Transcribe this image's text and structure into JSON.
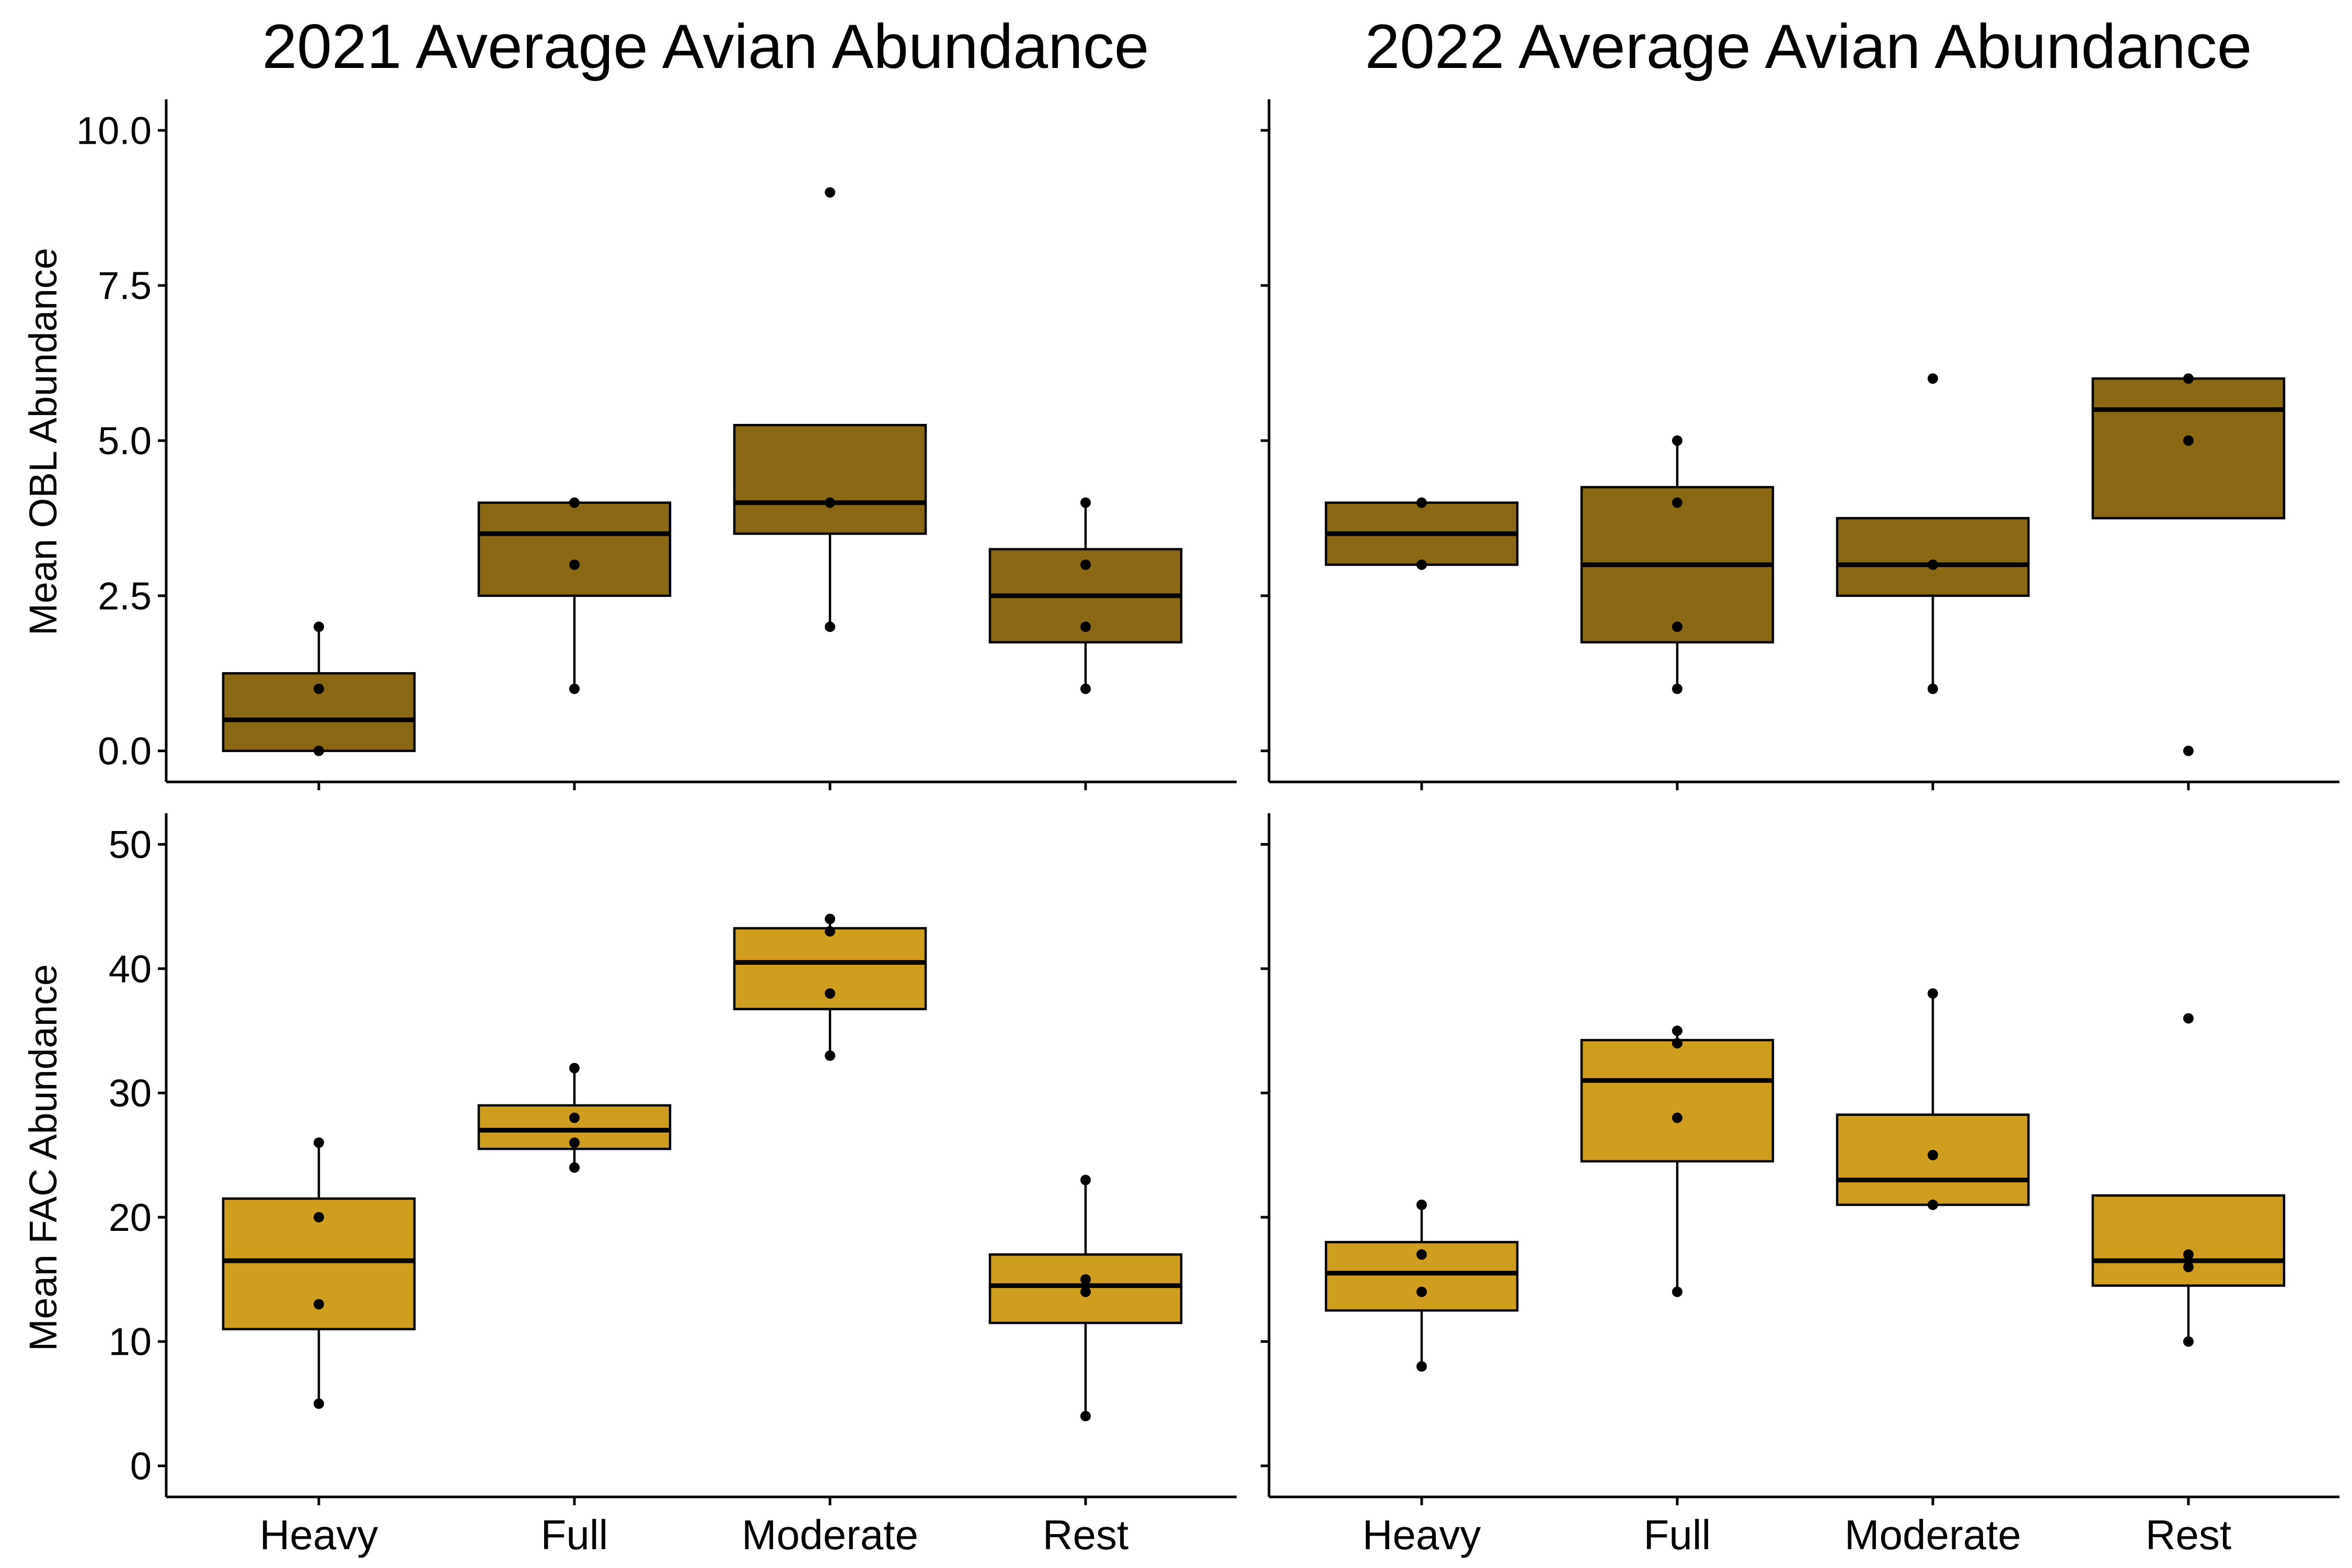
{
  "column_titles": [
    "2021 Average Avian Abundance",
    "2022 Average Avian Abundance"
  ],
  "colors": {
    "OBL": "#8B6914",
    "FAC": "#D09E1E",
    "outline": "#000000",
    "background": "#FFFFFF"
  },
  "chart_data": [
    {
      "type": "box",
      "title": "2021 Average Avian Abundance",
      "xlabel": "",
      "ylabel": "Mean OBL Abundance",
      "ylim": [
        -0.5,
        10.5
      ],
      "yticks": [
        "0.0",
        "2.5",
        "5.0",
        "7.5",
        "10.0"
      ],
      "xtick_labels_shown": false,
      "categories": [
        "Heavy",
        "Full",
        "Moderate",
        "Rest"
      ],
      "fill": "#8B6914",
      "boxes": [
        {
          "q1": 0,
          "median": 0.5,
          "q3": 1.25,
          "lower": 0,
          "upper": 2,
          "points": [
            0,
            1,
            2
          ]
        },
        {
          "q1": 2.5,
          "median": 3.5,
          "q3": 4,
          "lower": 1,
          "upper": 4,
          "points": [
            1,
            3,
            4
          ]
        },
        {
          "q1": 3.5,
          "median": 4,
          "q3": 5.25,
          "lower": 2,
          "upper": 5.25,
          "points": [
            2,
            4,
            9
          ]
        },
        {
          "q1": 1.75,
          "median": 2.5,
          "q3": 3.25,
          "lower": 1,
          "upper": 4,
          "points": [
            1,
            2,
            3,
            4
          ]
        }
      ]
    },
    {
      "type": "box",
      "title": "2022 Average Avian Abundance",
      "xlabel": "",
      "ylabel": "",
      "ylim": [
        -0.5,
        10.5
      ],
      "yticks": [
        "",
        "",
        "",
        "",
        ""
      ],
      "xtick_labels_shown": false,
      "categories": [
        "Heavy",
        "Full",
        "Moderate",
        "Rest"
      ],
      "fill": "#8B6914",
      "boxes": [
        {
          "q1": 3,
          "median": 3.5,
          "q3": 4,
          "lower": 3,
          "upper": 4,
          "points": [
            3,
            4
          ]
        },
        {
          "q1": 1.75,
          "median": 3,
          "q3": 4.25,
          "lower": 1,
          "upper": 5,
          "points": [
            1,
            2,
            4,
            5
          ]
        },
        {
          "q1": 2.5,
          "median": 3,
          "q3": 3.75,
          "lower": 1,
          "upper": 3.75,
          "points": [
            1,
            3,
            6
          ]
        },
        {
          "q1": 3.75,
          "median": 5.5,
          "q3": 6,
          "lower": 3.75,
          "upper": 6,
          "points": [
            0,
            5,
            6
          ]
        }
      ]
    },
    {
      "type": "box",
      "title": "",
      "xlabel": "",
      "ylabel": "Mean FAC Abundance",
      "ylim": [
        -2.5,
        52.5
      ],
      "yticks": [
        "0",
        "10",
        "20",
        "30",
        "40",
        "50"
      ],
      "xtick_labels_shown": true,
      "categories": [
        "Heavy",
        "Full",
        "Moderate",
        "Rest"
      ],
      "fill": "#D09E1E",
      "boxes": [
        {
          "q1": 11,
          "median": 16.5,
          "q3": 21.5,
          "lower": 5,
          "upper": 26,
          "points": [
            5,
            13,
            20,
            26
          ]
        },
        {
          "q1": 25.5,
          "median": 27,
          "q3": 29,
          "lower": 24,
          "upper": 32,
          "points": [
            24,
            26,
            28,
            32
          ]
        },
        {
          "q1": 36.75,
          "median": 40.5,
          "q3": 43.25,
          "lower": 33,
          "upper": 44,
          "points": [
            33,
            38,
            43,
            44
          ]
        },
        {
          "q1": 11.5,
          "median": 14.5,
          "q3": 17,
          "lower": 4,
          "upper": 23,
          "points": [
            4,
            14,
            15,
            23
          ]
        }
      ]
    },
    {
      "type": "box",
      "title": "",
      "xlabel": "",
      "ylabel": "",
      "ylim": [
        -2.5,
        52.5
      ],
      "yticks": [
        "",
        "",
        "",
        "",
        "",
        ""
      ],
      "xtick_labels_shown": true,
      "categories": [
        "Heavy",
        "Full",
        "Moderate",
        "Rest"
      ],
      "fill": "#D09E1E",
      "boxes": [
        {
          "q1": 12.5,
          "median": 15.5,
          "q3": 18,
          "lower": 8,
          "upper": 21,
          "points": [
            8,
            14,
            17,
            21
          ]
        },
        {
          "q1": 24.5,
          "median": 31,
          "q3": 34.25,
          "lower": 14,
          "upper": 35,
          "points": [
            14,
            28,
            34,
            35
          ]
        },
        {
          "q1": 21,
          "median": 23,
          "q3": 28.25,
          "lower": 21,
          "upper": 38,
          "points": [
            21,
            25,
            38
          ]
        },
        {
          "q1": 14.5,
          "median": 16.5,
          "q3": 21.75,
          "lower": 10,
          "upper": 21.75,
          "points": [
            10,
            16,
            17,
            36
          ]
        }
      ]
    }
  ]
}
